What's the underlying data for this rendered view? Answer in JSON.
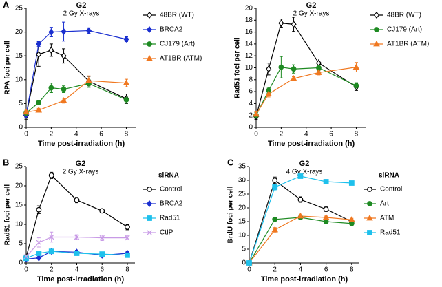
{
  "chart_data": [
    {
      "type": "line",
      "panel_label": "A",
      "title": "G2",
      "subtitle": "2 Gy X-rays",
      "y_label": "RPA foci per cell",
      "x_label": "Time post-irradiation (h)",
      "xlim": [
        0,
        8.8
      ],
      "xticks": [
        0,
        2,
        4,
        6,
        8
      ],
      "ylim": [
        0,
        25
      ],
      "yticks": [
        0,
        5,
        10,
        15,
        20,
        25
      ],
      "series": [
        {
          "name": "48BR (WT)",
          "color": "#000000",
          "marker": "diamond",
          "open": true,
          "x": [
            0,
            1,
            2,
            3,
            5,
            8
          ],
          "values": [
            2.5,
            15.3,
            16.2,
            15.0,
            9.7,
            6.0
          ],
          "errors": [
            0.8,
            2.5,
            1.3,
            1.5,
            1.0,
            1.0
          ]
        },
        {
          "name": "BRCA2",
          "color": "#1a2fd0",
          "marker": "diamond",
          "open": false,
          "x": [
            0,
            1,
            2,
            3,
            5,
            8
          ],
          "values": [
            2.6,
            17.5,
            20.0,
            20.1,
            20.3,
            18.5
          ],
          "errors": [
            0.5,
            0.5,
            1.0,
            2.0,
            0.6,
            0.5
          ]
        },
        {
          "name": "CJ179 (Art)",
          "color": "#1e8a22",
          "marker": "circle",
          "open": false,
          "x": [
            0,
            1,
            2,
            3,
            5,
            8
          ],
          "values": [
            3.0,
            5.2,
            8.3,
            8.0,
            9.2,
            5.8
          ],
          "errors": [
            0.5,
            0.5,
            1.0,
            0.7,
            0.8,
            0.7
          ]
        },
        {
          "name": "AT1BR (ATM)",
          "color": "#f07820",
          "marker": "triangle",
          "open": false,
          "x": [
            0,
            1,
            3,
            5,
            8
          ],
          "values": [
            3.2,
            3.6,
            5.6,
            9.8,
            9.3
          ],
          "errors": [
            0.4,
            0.4,
            0.5,
            1.0,
            0.8
          ]
        }
      ]
    },
    {
      "type": "line",
      "title": "G2",
      "subtitle": "2 Gy X-rays",
      "y_label": "Rad51 foci per cell",
      "x_label": "Time post-irradiation (h)",
      "xlim": [
        0,
        8.8
      ],
      "xticks": [
        0,
        2,
        4,
        6,
        8
      ],
      "ylim": [
        0,
        20
      ],
      "yticks": [
        0,
        2,
        4,
        6,
        8,
        10,
        12,
        14,
        16,
        18,
        20
      ],
      "series": [
        {
          "name": "48BR (WT)",
          "color": "#000000",
          "marker": "diamond",
          "open": true,
          "x": [
            0,
            1,
            2,
            3,
            5,
            8
          ],
          "values": [
            1.8,
            9.8,
            17.5,
            17.3,
            10.8,
            6.8
          ],
          "errors": [
            0.5,
            1.0,
            0.7,
            1.2,
            0.7,
            0.6
          ]
        },
        {
          "name": "CJ179 (Art)",
          "color": "#1e8a22",
          "marker": "circle",
          "open": false,
          "x": [
            0,
            1,
            2,
            3,
            5,
            8
          ],
          "values": [
            2.0,
            6.2,
            10.1,
            9.8,
            10.0,
            7.0
          ],
          "errors": [
            0.5,
            0.5,
            1.8,
            0.7,
            0.5,
            0.5
          ]
        },
        {
          "name": "AT1BR (ATM)",
          "color": "#f07820",
          "marker": "triangle",
          "open": false,
          "x": [
            0,
            1,
            3,
            5,
            8
          ],
          "values": [
            2.2,
            5.6,
            8.2,
            9.2,
            10.1
          ],
          "errors": [
            0.4,
            0.5,
            0.3,
            0.4,
            0.8
          ]
        }
      ]
    },
    {
      "type": "line",
      "panel_label": "B",
      "title": "G2",
      "subtitle": "2 Gy X-rays",
      "legend_title": "siRNA",
      "y_label": "Rad51 foci per cell",
      "x_label": "Time post-irradiation (h)",
      "xlim": [
        0,
        8.6
      ],
      "xticks": [
        0,
        2,
        4,
        6,
        8
      ],
      "ylim": [
        0,
        25
      ],
      "yticks": [
        0,
        5,
        10,
        15,
        20,
        25
      ],
      "series": [
        {
          "name": "Control",
          "color": "#000000",
          "marker": "circle",
          "open": true,
          "x": [
            0,
            1,
            2,
            4,
            6,
            8
          ],
          "values": [
            1.5,
            13.8,
            22.7,
            16.3,
            13.5,
            9.3
          ],
          "errors": [
            0.5,
            1.0,
            0.8,
            0.7,
            0.5,
            0.7
          ]
        },
        {
          "name": "BRCA2",
          "color": "#1a2fd0",
          "marker": "diamond",
          "open": false,
          "x": [
            0,
            1,
            2,
            4,
            6,
            8
          ],
          "values": [
            1.0,
            1.3,
            3.0,
            2.8,
            2.0,
            2.5
          ],
          "errors": [
            0.3,
            0.3,
            0.5,
            0.5,
            0.5,
            0.5
          ]
        },
        {
          "name": "Rad51",
          "color": "#1ec0ec",
          "marker": "square",
          "open": false,
          "x": [
            0,
            1,
            2,
            4,
            6,
            8
          ],
          "values": [
            1.2,
            2.5,
            3.0,
            2.5,
            2.3,
            2.0
          ],
          "errors": [
            0.3,
            0.5,
            0.5,
            0.5,
            0.5,
            0.5
          ]
        },
        {
          "name": "CtIP",
          "color": "#c89ae6",
          "marker": "x",
          "open": false,
          "x": [
            0,
            1,
            2,
            4,
            6,
            8
          ],
          "values": [
            1.6,
            5.3,
            6.7,
            6.7,
            6.5,
            6.5
          ],
          "errors": [
            0.5,
            1.2,
            1.3,
            0.6,
            0.7,
            0.5
          ]
        }
      ]
    },
    {
      "type": "line",
      "panel_label": "C",
      "title": "G2",
      "subtitle": "4 Gy X-rays",
      "legend_title": "siRNA",
      "y_label": "BrdU foci per cell",
      "x_label": "Time post-irradiation (h)",
      "xlim": [
        0,
        8.6
      ],
      "xticks": [
        0,
        2,
        4,
        6,
        8
      ],
      "ylim": [
        0,
        35
      ],
      "yticks": [
        0,
        5,
        10,
        15,
        20,
        25,
        30,
        35
      ],
      "series": [
        {
          "name": "Control",
          "color": "#000000",
          "marker": "circle",
          "open": true,
          "x": [
            0,
            2,
            4,
            6,
            8
          ],
          "values": [
            0,
            30.0,
            23.0,
            19.5,
            15.0
          ],
          "errors": [
            0,
            1.2,
            1.0,
            0.8,
            0.7
          ]
        },
        {
          "name": "Art",
          "color": "#1e8a22",
          "marker": "circle",
          "open": false,
          "x": [
            0,
            2,
            4,
            6,
            8
          ],
          "values": [
            0,
            15.8,
            16.5,
            15.0,
            14.3
          ],
          "errors": [
            0,
            0.5,
            0.5,
            0.5,
            0.8
          ]
        },
        {
          "name": "ATM",
          "color": "#f07820",
          "marker": "triangle",
          "open": false,
          "x": [
            0,
            2,
            4,
            6,
            8
          ],
          "values": [
            0,
            12.0,
            17.0,
            16.5,
            15.7
          ],
          "errors": [
            0,
            0.8,
            0.5,
            0.5,
            0.5
          ]
        },
        {
          "name": "Rad51",
          "color": "#1ec0ec",
          "marker": "square",
          "open": false,
          "x": [
            0,
            2,
            4,
            6,
            8
          ],
          "values": [
            0,
            27.5,
            31.5,
            29.5,
            29.0
          ],
          "errors": [
            0,
            1.0,
            0.5,
            0.5,
            0.5
          ]
        }
      ]
    }
  ]
}
